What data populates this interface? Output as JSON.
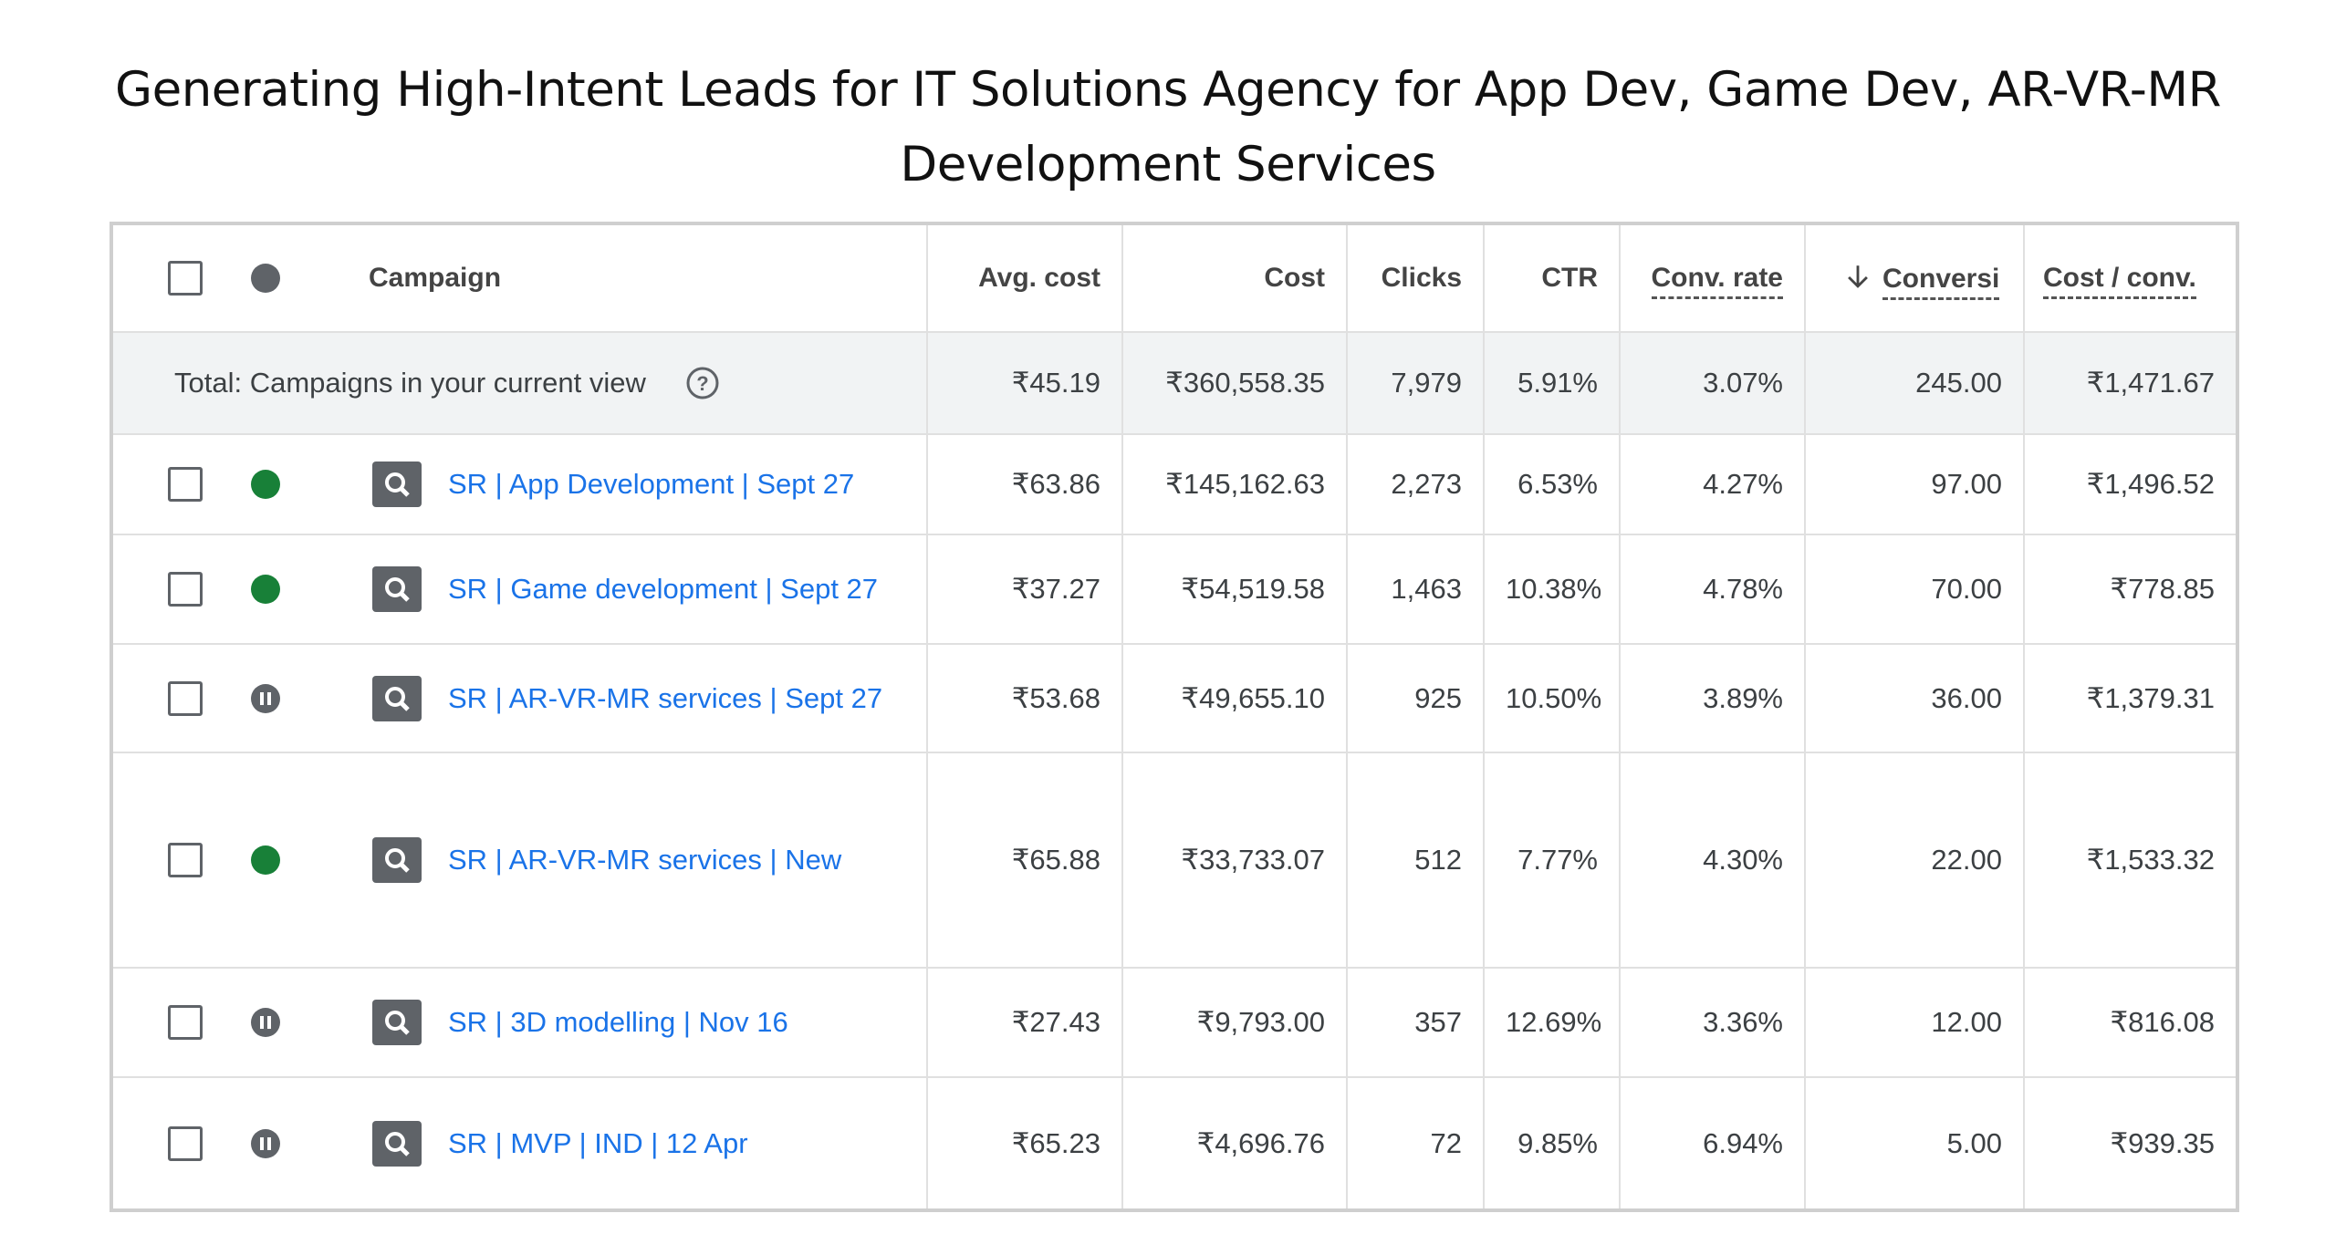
{
  "header": {
    "title": "Generating High-Intent Leads for IT Solutions Agency for App Dev, Game Dev, AR-VR-MR Development Services"
  },
  "table": {
    "columns": [
      "Campaign",
      "Avg. cost",
      "Cost",
      "Clicks",
      "CTR",
      "Conv. rate",
      "Conversi",
      "Cost / conv."
    ],
    "total": {
      "label": "Total: Campaigns in your current view",
      "values": [
        "₹45.19",
        "₹360,558.35",
        "7,979",
        "5.91%",
        "3.07%",
        "245.00",
        "₹1,471.67"
      ]
    },
    "rows": [
      {
        "campaign": "SR | App Development | Sept 27",
        "values": [
          "₹63.86",
          "₹145,162.63",
          "2,273",
          "6.53%",
          "4.27%",
          "97.00",
          "₹1,496.52"
        ]
      },
      {
        "campaign": "SR | Game development | Sept 27",
        "values": [
          "₹37.27",
          "₹54,519.58",
          "1,463",
          "10.38%",
          "4.78%",
          "70.00",
          "₹778.85"
        ]
      },
      {
        "campaign": "SR | AR-VR-MR services | Sept 27",
        "values": [
          "₹53.68",
          "₹49,655.10",
          "925",
          "10.50%",
          "3.89%",
          "36.00",
          "₹1,379.31"
        ]
      },
      {
        "campaign": "SR | AR-VR-MR services | New",
        "values": [
          "₹65.88",
          "₹33,733.07",
          "512",
          "7.77%",
          "4.30%",
          "22.00",
          "₹1,533.32"
        ]
      },
      {
        "campaign": "SR | 3D modelling | Nov 16",
        "values": [
          "₹27.43",
          "₹9,793.00",
          "357",
          "12.69%",
          "3.36%",
          "12.00",
          "₹816.08"
        ]
      },
      {
        "campaign": "SR | MVP | IND | 12 Apr",
        "values": [
          "₹65.23",
          "₹4,696.76",
          "72",
          "9.85%",
          "6.94%",
          "5.00",
          "₹939.35"
        ]
      }
    ]
  }
}
